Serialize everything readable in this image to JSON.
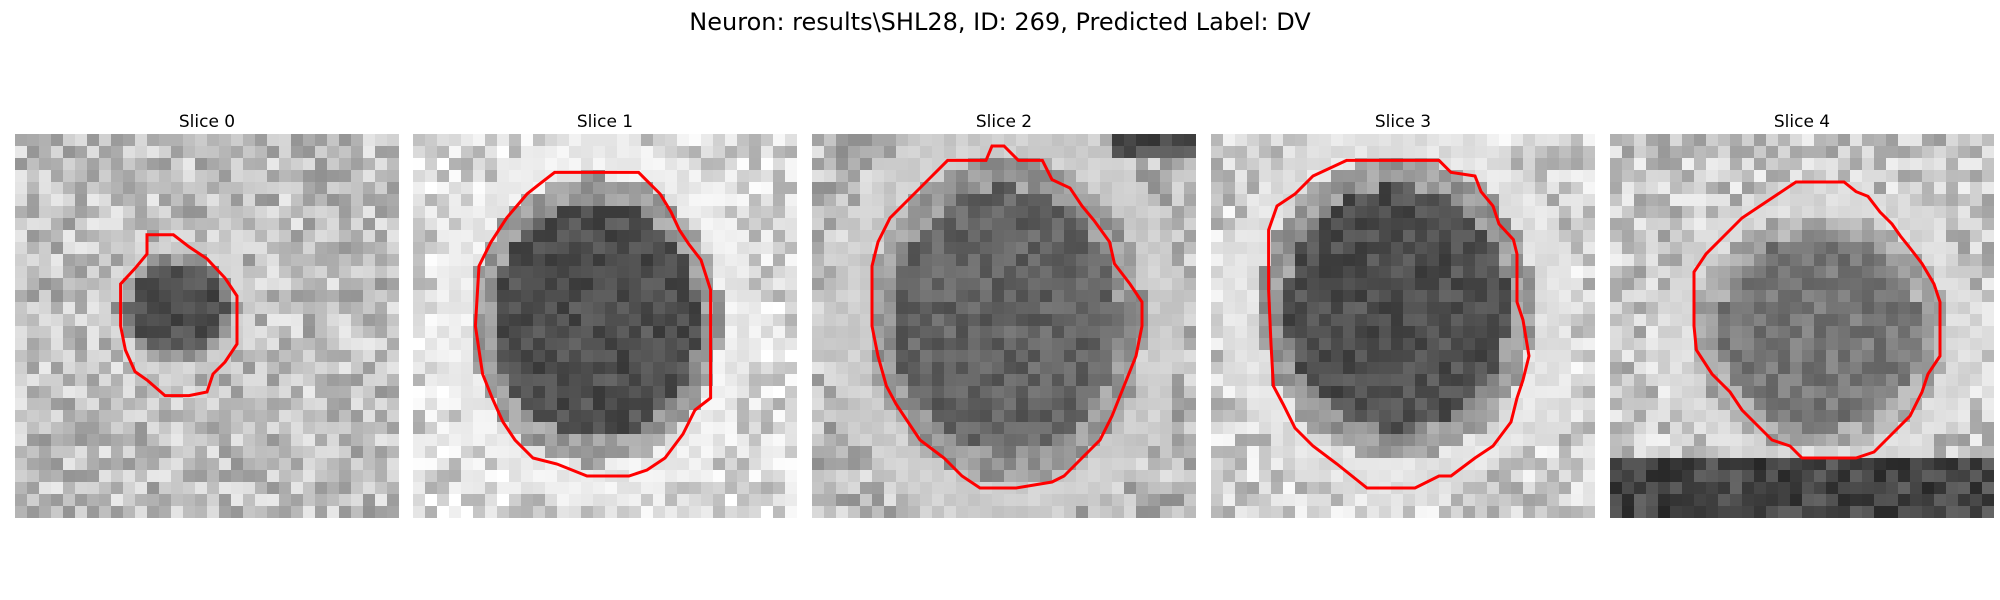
{
  "figure": {
    "title": "Neuron: results\\SHL28, ID: 269, Predicted Label: DV"
  },
  "panels": [
    {
      "title": "Slice 0"
    },
    {
      "title": "Slice 1"
    },
    {
      "title": "Slice 2"
    },
    {
      "title": "Slice 3"
    },
    {
      "title": "Slice 4"
    }
  ],
  "colors": {
    "contour": "#ff0000",
    "background": "#ffffff"
  }
}
